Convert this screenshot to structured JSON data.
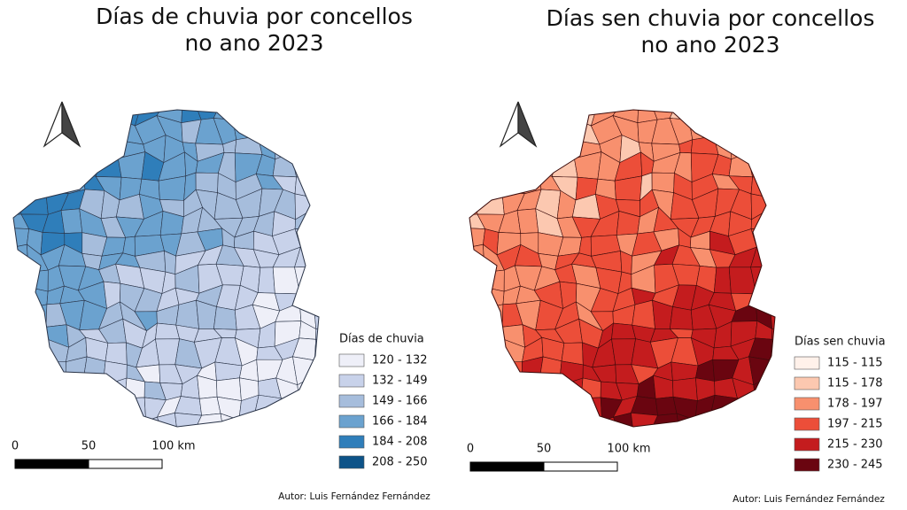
{
  "maps": [
    {
      "title": [
        "Días de chuvia por concellos",
        "no ano 2023"
      ],
      "legend": {
        "title": "Días de chuvia",
        "items": [
          {
            "label": "120 - 132",
            "color": "#eeeff8"
          },
          {
            "label": "132 - 149",
            "color": "#c8d2ea"
          },
          {
            "label": "149 - 166",
            "color": "#a6bddc"
          },
          {
            "label": "166 - 184",
            "color": "#6ba2cf"
          },
          {
            "label": "184 - 208",
            "color": "#2f7eba"
          },
          {
            "label": "208 - 250",
            "color": "#0d5388"
          }
        ]
      },
      "scale": [
        "0",
        "50",
        "100 km"
      ],
      "author": "Autor: Luis Fernández Fernández"
    },
    {
      "title": [
        "Días sen chuvia por concellos",
        "no ano 2023"
      ],
      "legend": {
        "title": "Días sen chuvia",
        "items": [
          {
            "label": "115 - 115",
            "color": "#fff1ea"
          },
          {
            "label": "115 - 178",
            "color": "#fcc8b0"
          },
          {
            "label": "178 - 197",
            "color": "#f8906e"
          },
          {
            "label": "197 - 215",
            "color": "#ec4e39"
          },
          {
            "label": "215 - 230",
            "color": "#c41c1e"
          },
          {
            "label": "230 - 245",
            "color": "#6a0510"
          }
        ]
      },
      "scale": [
        "0",
        "50",
        "100 km"
      ],
      "author": "Autor: Luis Fernández Fernández"
    }
  ]
}
